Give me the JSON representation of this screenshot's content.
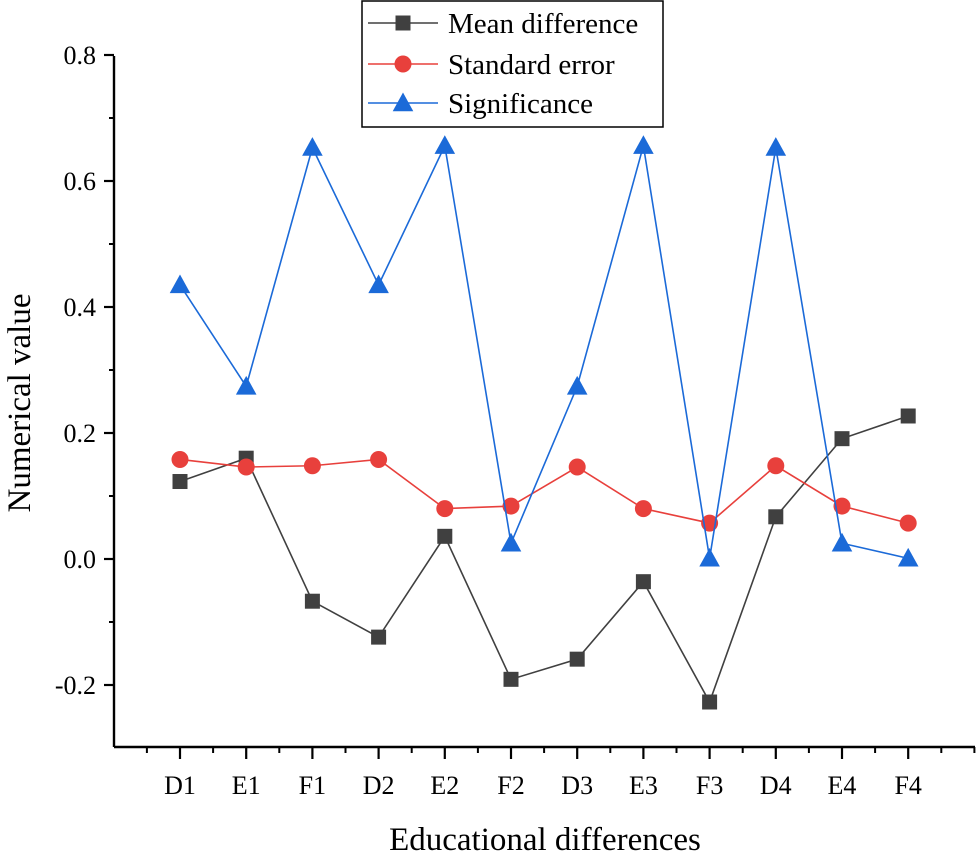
{
  "chart_data": {
    "type": "line",
    "title": "",
    "xlabel": "Educational differences",
    "ylabel": "Numerical value",
    "categories": [
      "D1",
      "E1",
      "F1",
      "D2",
      "E2",
      "F2",
      "D3",
      "E3",
      "F3",
      "D4",
      "E4",
      "F4"
    ],
    "ylim": [
      -0.3,
      0.8
    ],
    "yticks": [
      -0.2,
      0.0,
      0.2,
      0.4,
      0.6,
      0.8
    ],
    "ytick_labels": [
      "-0.2",
      "0.0",
      "0.2",
      "0.4",
      "0.6",
      "0.8"
    ],
    "grid": false,
    "legend_position": "top-center",
    "series": [
      {
        "name": "Mean difference",
        "marker": "square",
        "color": "#404040",
        "values": [
          0.123,
          0.16,
          -0.067,
          -0.124,
          0.036,
          -0.191,
          -0.159,
          -0.036,
          -0.227,
          0.067,
          0.191,
          0.227
        ]
      },
      {
        "name": "Standard error",
        "marker": "circle",
        "color": "#e8403c",
        "values": [
          0.158,
          0.146,
          0.148,
          0.158,
          0.08,
          0.084,
          0.146,
          0.08,
          0.057,
          0.148,
          0.084,
          0.057
        ]
      },
      {
        "name": "Significance",
        "marker": "triangle",
        "color": "#1b6ad8",
        "values": [
          0.435,
          0.274,
          0.653,
          0.435,
          0.656,
          0.025,
          0.274,
          0.656,
          0.001,
          0.653,
          0.025,
          0.001
        ]
      }
    ]
  }
}
